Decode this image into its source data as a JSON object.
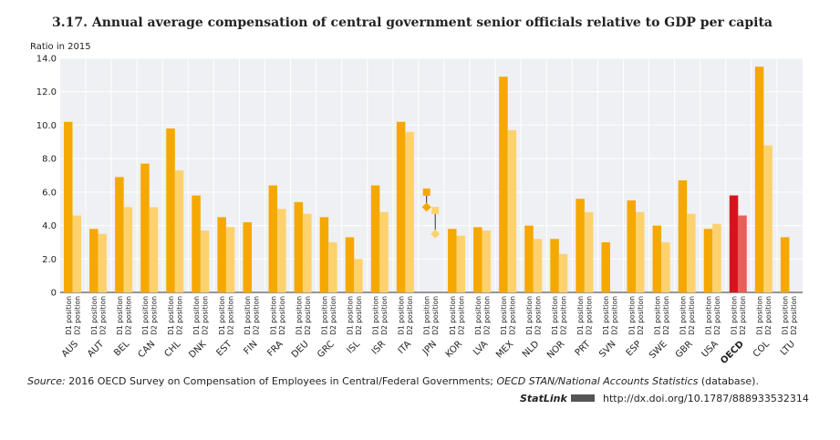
{
  "chart_data": {
    "type": "bar",
    "title": "3.17. Annual average compensation of central government senior officials relative to GDP per capita",
    "y_label": "Ratio  in 2015",
    "categories": [
      "AUS",
      "AUT",
      "BEL",
      "CAN",
      "CHL",
      "DNK",
      "EST",
      "FIN",
      "FRA",
      "DEU",
      "GRC",
      "ISL",
      "ISR",
      "ITA",
      "JPN",
      "KOR",
      "LVA",
      "MEX",
      "NLD",
      "NOR",
      "PRT",
      "SVN",
      "ESP",
      "SWE",
      "GBR",
      "USA",
      "OECD",
      "COL",
      "LTU"
    ],
    "series": [
      {
        "name": "D1 position",
        "color": "#f5a800",
        "colors": [
          "#f5a800",
          "#f5a800",
          "#f5a800",
          "#f5a800",
          "#f5a800",
          "#f5a800",
          "#f5a800",
          "#f5a800",
          "#f5a800",
          "#f5a800",
          "#f5a800",
          "#f5a800",
          "#f5a800",
          "#f5a800",
          "#f5a800",
          "#f5a800",
          "#f5a800",
          "#f5a800",
          "#f5a800",
          "#f5a800",
          "#f5a800",
          "#f5a800",
          "#f5a800",
          "#f5a800",
          "#f5a800",
          "#f5a800",
          "#d7141e",
          "#f5a800",
          "#f5a800"
        ],
        "values": [
          10.2,
          3.8,
          6.9,
          7.7,
          9.8,
          5.8,
          4.5,
          4.2,
          6.4,
          5.4,
          4.5,
          3.3,
          6.4,
          10.2,
          null,
          3.8,
          3.9,
          12.9,
          4.0,
          3.2,
          5.6,
          3.0,
          5.5,
          4.0,
          6.7,
          3.8,
          5.8,
          13.5,
          3.3
        ],
        "range_high": [
          null,
          null,
          null,
          null,
          null,
          null,
          null,
          null,
          null,
          null,
          null,
          null,
          null,
          null,
          6.0,
          null,
          null,
          null,
          null,
          null,
          null,
          null,
          null,
          null,
          null,
          null,
          null,
          null,
          null
        ],
        "range_low": [
          null,
          null,
          null,
          null,
          null,
          null,
          null,
          null,
          null,
          null,
          null,
          null,
          null,
          null,
          5.1,
          null,
          null,
          null,
          null,
          null,
          null,
          null,
          null,
          null,
          null,
          null,
          null,
          null,
          null
        ]
      },
      {
        "name": "D2 position",
        "color": "#fdd26e",
        "colors": [
          "#fdd26e",
          "#fdd26e",
          "#fdd26e",
          "#fdd26e",
          "#fdd26e",
          "#fdd26e",
          "#fdd26e",
          "#fdd26e",
          "#fdd26e",
          "#fdd26e",
          "#fdd26e",
          "#fdd26e",
          "#fdd26e",
          "#fdd26e",
          "#fdd26e",
          "#fdd26e",
          "#fdd26e",
          "#fdd26e",
          "#fdd26e",
          "#fdd26e",
          "#fdd26e",
          "#fdd26e",
          "#fdd26e",
          "#fdd26e",
          "#fdd26e",
          "#fdd26e",
          "#e8605a",
          "#fdd26e",
          "#fdd26e"
        ],
        "values": [
          4.6,
          3.5,
          5.1,
          5.1,
          7.3,
          3.7,
          3.9,
          null,
          5.0,
          4.7,
          3.0,
          2.0,
          4.8,
          9.6,
          null,
          3.4,
          3.7,
          9.7,
          3.2,
          2.3,
          4.8,
          null,
          4.8,
          3.0,
          4.7,
          4.1,
          4.6,
          8.8,
          null
        ],
        "range_high": [
          null,
          null,
          null,
          null,
          null,
          null,
          null,
          null,
          null,
          null,
          null,
          null,
          null,
          null,
          4.9,
          null,
          null,
          null,
          null,
          null,
          null,
          null,
          null,
          null,
          null,
          null,
          null,
          null,
          null
        ],
        "range_low": [
          null,
          null,
          null,
          null,
          null,
          null,
          null,
          null,
          null,
          null,
          null,
          null,
          null,
          null,
          3.5,
          null,
          null,
          null,
          null,
          null,
          null,
          null,
          null,
          null,
          null,
          null,
          null,
          null,
          null
        ]
      }
    ],
    "ylim": [
      0,
      14
    ],
    "yticks": [
      0,
      {
        "value": 2,
        "label": "2.0"
      },
      {
        "value": 4,
        "label": "4.0"
      },
      {
        "value": 6,
        "label": "6.0"
      },
      {
        "value": 8,
        "label": "8.0"
      },
      {
        "value": 10,
        "label": "10.0"
      },
      {
        "value": 12,
        "label": "12.0"
      },
      {
        "value": 14,
        "label": "14.0"
      }
    ],
    "grid": true,
    "source": [
      "Source:",
      " 2016 OECD Survey on Compensation of Employees in Central/Federal Governments; ",
      "OECD STAN/National Accounts Statistics",
      " (database)."
    ],
    "statlink": "StatLink",
    "url": "http://dx.doi.org/10.1787/888933532314"
  }
}
